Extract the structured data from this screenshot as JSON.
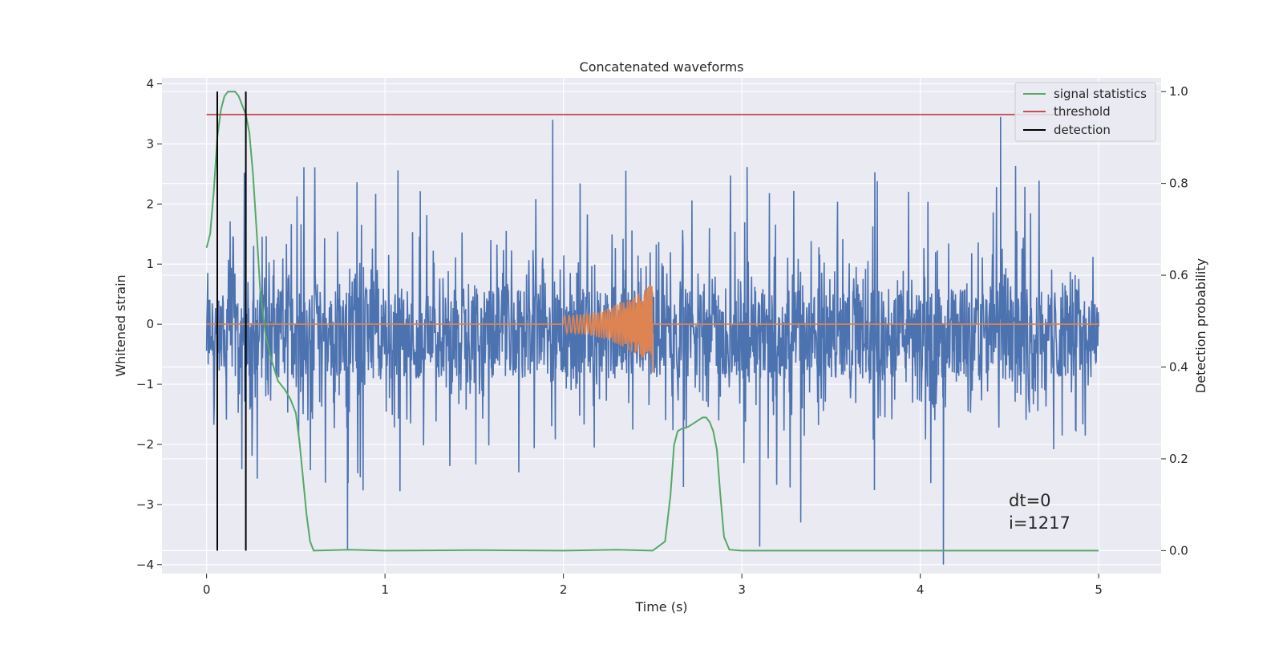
{
  "chart_data": {
    "type": "line",
    "title": "Concatenated waveforms",
    "xlabel": "Time (s)",
    "ylabel": "Whitened strain",
    "y2label": "Detection probability",
    "xlim": [
      -0.25,
      5.35
    ],
    "ylim": [
      -4.15,
      4.1
    ],
    "y2lim": [
      -0.05,
      1.03
    ],
    "xticks": [
      0,
      1,
      2,
      3,
      4,
      5
    ],
    "xtick_labels": [
      "0",
      "1",
      "2",
      "3",
      "4",
      "5"
    ],
    "yticks": [
      -4,
      -3,
      -2,
      -1,
      0,
      1,
      2,
      3,
      4
    ],
    "ytick_labels": [
      "−4",
      "−3",
      "−2",
      "−1",
      "0",
      "1",
      "2",
      "3",
      "4"
    ],
    "y2ticks": [
      0.0,
      0.2,
      0.4,
      0.6,
      0.8,
      1.0
    ],
    "y2tick_labels": [
      "0.0",
      "0.2",
      "0.4",
      "0.6",
      "0.8",
      "1.0"
    ],
    "grid": true,
    "legend_position": "top-right",
    "series": [
      {
        "name": "",
        "axis": "left",
        "color": "#4c72b0",
        "kind": "noise",
        "x_range": [
          0,
          5
        ],
        "core_amplitude": [
          -0.9,
          0.6
        ],
        "spike_range": [
          -4.0,
          3.45
        ],
        "notable_spikes": [
          {
            "x": 0.79,
            "y": -3.75
          },
          {
            "x": 1.94,
            "y": 3.4
          },
          {
            "x": 3.1,
            "y": -3.7
          },
          {
            "x": 3.33,
            "y": -3.3
          },
          {
            "x": 4.13,
            "y": -4.0
          },
          {
            "x": 4.45,
            "y": 3.45
          }
        ]
      },
      {
        "name": "",
        "axis": "left",
        "color": "#dd8452",
        "kind": "chirp",
        "x_range": [
          0,
          5
        ],
        "chirp_start": 2.0,
        "chirp_end": 2.5,
        "peak_amplitude": [
          -0.8,
          0.62
        ]
      },
      {
        "name": "signal statistics",
        "axis": "right",
        "color": "#55a868",
        "x": [
          0.0,
          0.02,
          0.04,
          0.06,
          0.08,
          0.1,
          0.12,
          0.14,
          0.16,
          0.18,
          0.2,
          0.22,
          0.24,
          0.26,
          0.28,
          0.3,
          0.33,
          0.36,
          0.4,
          0.44,
          0.47,
          0.5,
          0.52,
          0.54,
          0.56,
          0.58,
          0.6,
          0.8,
          1.0,
          1.5,
          2.0,
          2.3,
          2.5,
          2.57,
          2.6,
          2.62,
          2.64,
          2.66,
          2.7,
          2.74,
          2.78,
          2.8,
          2.82,
          2.84,
          2.86,
          2.88,
          2.9,
          2.93,
          3.0,
          3.5,
          4.0,
          4.5,
          5.0
        ],
        "y": [
          0.66,
          0.69,
          0.78,
          0.9,
          0.96,
          0.99,
          1.0,
          1.0,
          1.0,
          0.99,
          0.97,
          0.95,
          0.91,
          0.82,
          0.7,
          0.57,
          0.47,
          0.42,
          0.37,
          0.35,
          0.33,
          0.3,
          0.24,
          0.16,
          0.08,
          0.02,
          0.0,
          0.002,
          0.0,
          0.001,
          0.0,
          0.002,
          0.0,
          0.02,
          0.12,
          0.23,
          0.26,
          0.265,
          0.27,
          0.28,
          0.29,
          0.29,
          0.28,
          0.26,
          0.22,
          0.12,
          0.03,
          0.002,
          0.0,
          0.0,
          0.0,
          0.0,
          0.0
        ]
      },
      {
        "name": "threshold",
        "axis": "right",
        "color": "#c44e52",
        "x": [
          0,
          5
        ],
        "y": [
          0.95,
          0.95
        ]
      },
      {
        "name": "detection",
        "axis": "right",
        "color": "#000000",
        "vlines": [
          0.06,
          0.22
        ],
        "ymin": 0.0,
        "ymax": 1.0
      }
    ],
    "annotations": [
      {
        "text": "dt=0",
        "x": 4.5,
        "y": -3.1
      },
      {
        "text": "i=1217",
        "x": 4.5,
        "y": -3.45
      }
    ]
  }
}
